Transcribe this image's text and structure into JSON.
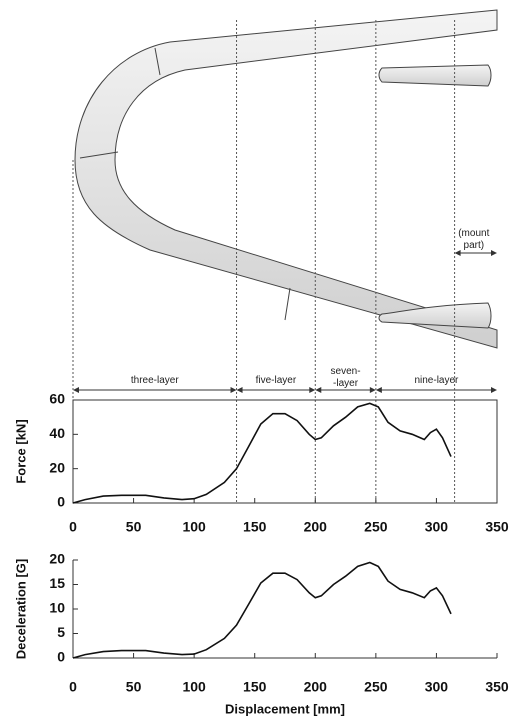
{
  "diagram": {
    "sections": [
      {
        "label": "three-layer",
        "from": 0,
        "to": 135
      },
      {
        "label": "five-layer",
        "from": 135,
        "to": 200
      },
      {
        "label": "seven-\n-layer",
        "from": 200,
        "to": 250
      },
      {
        "label": "nine-layer",
        "from": 250,
        "to": 350
      }
    ],
    "mount": {
      "label": "(mount part)",
      "from": 315,
      "to": 350
    }
  },
  "chart_data": [
    {
      "type": "line",
      "ylabel": "Force  [kN]",
      "frame": true,
      "x": [
        0,
        10,
        25,
        40,
        60,
        75,
        90,
        100,
        110,
        125,
        135,
        145,
        155,
        165,
        175,
        185,
        195,
        200,
        205,
        215,
        225,
        235,
        245,
        252,
        260,
        270,
        280,
        290,
        295,
        300,
        305,
        312
      ],
      "series": [
        {
          "color": "#111111",
          "values": [
            0,
            2,
            4,
            4.5,
            4.5,
            3,
            2,
            2.5,
            5,
            12,
            20,
            33,
            46,
            52,
            52,
            48,
            40,
            37,
            38,
            45,
            50,
            56,
            58,
            56,
            47,
            42,
            40,
            37,
            41,
            43,
            38,
            27
          ]
        }
      ],
      "xlim": [
        0,
        350
      ],
      "xticks": [
        0,
        50,
        100,
        150,
        200,
        250,
        300,
        350
      ],
      "ylim": [
        0,
        60
      ],
      "yticks": [
        0,
        20,
        40,
        60
      ]
    },
    {
      "type": "line",
      "ylabel": "Deceleration  [G]",
      "xlabel": "Displacement  [mm]",
      "frame": false,
      "x": [
        0,
        10,
        25,
        40,
        60,
        75,
        90,
        100,
        110,
        125,
        135,
        145,
        155,
        165,
        175,
        185,
        195,
        200,
        205,
        215,
        225,
        235,
        245,
        252,
        260,
        270,
        280,
        290,
        295,
        300,
        305,
        312
      ],
      "series": [
        {
          "color": "#111111",
          "values": [
            0,
            0.7,
            1.3,
            1.5,
            1.5,
            1,
            0.7,
            0.8,
            1.7,
            4,
            6.7,
            11,
            15.3,
            17.3,
            17.3,
            16,
            13.3,
            12.3,
            12.7,
            15,
            16.7,
            18.7,
            19.5,
            18.7,
            15.7,
            14,
            13.3,
            12.3,
            13.7,
            14.3,
            12.7,
            9
          ]
        }
      ],
      "xlim": [
        0,
        350
      ],
      "xticks": [
        0,
        50,
        100,
        150,
        200,
        250,
        300,
        350
      ],
      "ylim": [
        0,
        20
      ],
      "yticks": [
        0,
        5,
        10,
        15,
        20
      ]
    }
  ]
}
